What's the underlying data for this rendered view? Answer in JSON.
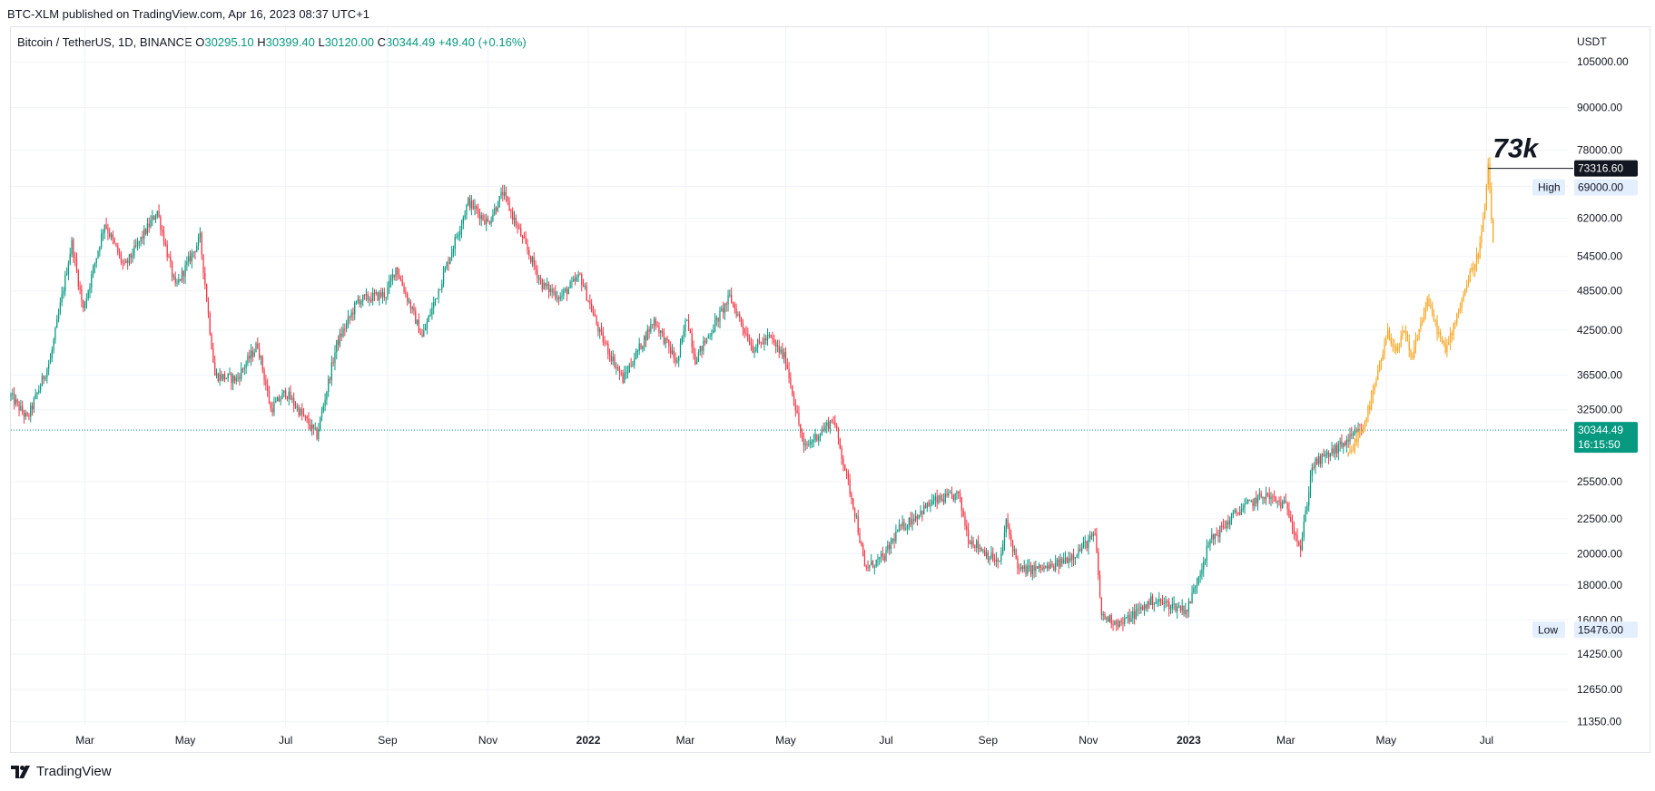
{
  "header": {
    "published": "BTC-XLM published on TradingView.com, Apr 16, 2023 08:37 UTC+1"
  },
  "legend": {
    "symbol": "Bitcoin / TetherUS, 1D, BINANCE",
    "open_label": "O",
    "open": "30295.10",
    "high_label": "H",
    "high": "30399.40",
    "low_label": "L",
    "low": "30120.00",
    "close_label": "C",
    "close": "30344.49",
    "change": "+49.40 (+0.16%)"
  },
  "footer": {
    "brand": "TradingView"
  },
  "colors": {
    "up": "#089981",
    "down": "#f23645",
    "projection": "#f5a623",
    "grid": "#f0f3fa",
    "axis_text": "#131722",
    "price_line": "#089981"
  },
  "chart_data": {
    "type": "candlestick",
    "currency": "USDT",
    "scale": "log",
    "x_axis_ticks": [
      "Mar",
      "May",
      "Jul",
      "Sep",
      "Nov",
      "2022",
      "Mar",
      "May",
      "Jul",
      "Sep",
      "Nov",
      "2023",
      "Mar",
      "May",
      "Jul"
    ],
    "x_axis_bold": [
      "2022",
      "2023"
    ],
    "y_axis_ticks": [
      105000,
      90000,
      78000,
      69000,
      62000,
      54500,
      48500,
      42500,
      36500,
      32500,
      25500,
      22500,
      20000,
      18000,
      16000,
      14250,
      12650,
      11350
    ],
    "y_range": [
      11200,
      118000
    ],
    "x_range": [
      "2021-01-15",
      "2023-08-20"
    ],
    "anchors": [
      [
        "2021-01-15",
        34000
      ],
      [
        "2021-01-25",
        31500
      ],
      [
        "2021-02-08",
        38500
      ],
      [
        "2021-02-21",
        57000
      ],
      [
        "2021-02-28",
        45500
      ],
      [
        "2021-03-13",
        61000
      ],
      [
        "2021-03-25",
        52500
      ],
      [
        "2021-04-14",
        63500
      ],
      [
        "2021-04-25",
        49000
      ],
      [
        "2021-05-10",
        58000
      ],
      [
        "2021-05-19",
        36500
      ],
      [
        "2021-06-01",
        36000
      ],
      [
        "2021-06-14",
        40500
      ],
      [
        "2021-06-22",
        32500
      ],
      [
        "2021-07-01",
        34500
      ],
      [
        "2021-07-20",
        29800
      ],
      [
        "2021-08-01",
        40500
      ],
      [
        "2021-08-14",
        47000
      ],
      [
        "2021-08-31",
        48000
      ],
      [
        "2021-09-06",
        52500
      ],
      [
        "2021-09-22",
        41500
      ],
      [
        "2021-10-01",
        48000
      ],
      [
        "2021-10-20",
        65500
      ],
      [
        "2021-11-01",
        61000
      ],
      [
        "2021-11-10",
        67500
      ],
      [
        "2021-11-21",
        58500
      ],
      [
        "2021-12-04",
        49500
      ],
      [
        "2021-12-15",
        47500
      ],
      [
        "2021-12-27",
        51000
      ],
      [
        "2022-01-08",
        42000
      ],
      [
        "2022-01-22",
        36000
      ],
      [
        "2022-02-10",
        44000
      ],
      [
        "2022-02-24",
        38000
      ],
      [
        "2022-03-02",
        44500
      ],
      [
        "2022-03-07",
        38500
      ],
      [
        "2022-03-28",
        47500
      ],
      [
        "2022-04-11",
        40000
      ],
      [
        "2022-04-21",
        41500
      ],
      [
        "2022-05-01",
        38500
      ],
      [
        "2022-05-12",
        28500
      ],
      [
        "2022-05-30",
        31500
      ],
      [
        "2022-06-13",
        22500
      ],
      [
        "2022-06-18",
        19000
      ],
      [
        "2022-06-30",
        19800
      ],
      [
        "2022-07-08",
        21600
      ],
      [
        "2022-07-29",
        23800
      ],
      [
        "2022-08-14",
        24400
      ],
      [
        "2022-08-20",
        21100
      ],
      [
        "2022-09-08",
        19300
      ],
      [
        "2022-09-12",
        22200
      ],
      [
        "2022-09-20",
        18900
      ],
      [
        "2022-10-10",
        19100
      ],
      [
        "2022-10-25",
        20100
      ],
      [
        "2022-11-05",
        21300
      ],
      [
        "2022-11-09",
        16200
      ],
      [
        "2022-11-21",
        15800
      ],
      [
        "2022-12-10",
        17100
      ],
      [
        "2022-12-31",
        16550
      ],
      [
        "2023-01-14",
        20900
      ],
      [
        "2023-01-31",
        23100
      ],
      [
        "2023-02-16",
        24400
      ],
      [
        "2023-03-02",
        23400
      ],
      [
        "2023-03-10",
        20300
      ],
      [
        "2023-03-17",
        26900
      ],
      [
        "2023-04-01",
        28500
      ],
      [
        "2023-04-16",
        30344
      ]
    ],
    "projection_anchors": [
      [
        "2023-04-08",
        27800
      ],
      [
        "2023-04-16",
        30344
      ],
      [
        "2023-04-22",
        33500
      ],
      [
        "2023-05-02",
        42000
      ],
      [
        "2023-05-08",
        39500
      ],
      [
        "2023-05-12",
        42500
      ],
      [
        "2023-05-16",
        38500
      ],
      [
        "2023-05-26",
        47000
      ],
      [
        "2023-06-02",
        42000
      ],
      [
        "2023-06-06",
        39500
      ],
      [
        "2023-06-12",
        44000
      ],
      [
        "2023-06-20",
        50500
      ],
      [
        "2023-06-26",
        55000
      ],
      [
        "2023-06-29",
        61000
      ],
      [
        "2023-07-02",
        73316.6
      ],
      [
        "2023-07-05",
        57000
      ]
    ],
    "annotation": {
      "text": "73k",
      "value": 73316.6,
      "date": "2023-07-02"
    },
    "labels": {
      "high_label": "High",
      "high": "69000.00",
      "low_label": "Low",
      "low": "15476.00",
      "target_price": "73316.60",
      "current_price": "30344.49",
      "countdown": "16:15:50"
    },
    "current_value": 30344.49,
    "high_value": 69000,
    "low_value": 15476,
    "range_low_value": 15476,
    "legend_placement": "top-left",
    "grid": true
  }
}
